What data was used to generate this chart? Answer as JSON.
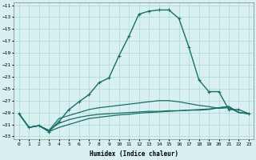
{
  "xlabel": "Humidex (Indice chaleur)",
  "background_color": "#d8f0f0",
  "grid_color": "#a8d8d8",
  "line_color": "#1a6e6a",
  "xlim": [
    -0.5,
    23.5
  ],
  "ylim": [
    -33.5,
    -10.5
  ],
  "yticks": [
    -11,
    -13,
    -15,
    -17,
    -19,
    -21,
    -23,
    -25,
    -27,
    -29,
    -31,
    -33
  ],
  "xticks": [
    0,
    1,
    2,
    3,
    4,
    5,
    6,
    7,
    8,
    9,
    10,
    11,
    12,
    13,
    14,
    15,
    16,
    17,
    18,
    19,
    20,
    21,
    22,
    23
  ],
  "series": [
    {
      "x": [
        0,
        1,
        2,
        3,
        4,
        5,
        6,
        7,
        8,
        9,
        10,
        11,
        12,
        13,
        14,
        15,
        16,
        17,
        18,
        19,
        20,
        21,
        22,
        23
      ],
      "y": [
        -29.2,
        -31.5,
        -31.2,
        -32.0,
        -30.8,
        -30.2,
        -29.8,
        -29.5,
        -29.3,
        -29.2,
        -29.1,
        -29.0,
        -28.9,
        -28.8,
        -28.8,
        -28.7,
        -28.7,
        -28.6,
        -28.6,
        -28.5,
        -28.2,
        -28.0,
        -29.0,
        -29.2
      ],
      "marker": false,
      "linewidth": 0.9
    },
    {
      "x": [
        0,
        1,
        2,
        3,
        4,
        5,
        6,
        7,
        8,
        9,
        10,
        11,
        12,
        13,
        14,
        15,
        16,
        17,
        18,
        19,
        20,
        21,
        22,
        23
      ],
      "y": [
        -29.2,
        -31.5,
        -31.2,
        -32.2,
        -31.5,
        -31.0,
        -30.5,
        -30.0,
        -29.8,
        -29.6,
        -29.4,
        -29.3,
        -29.1,
        -29.0,
        -28.9,
        -28.8,
        -28.7,
        -28.6,
        -28.5,
        -28.4,
        -28.2,
        -28.0,
        -29.0,
        -29.2
      ],
      "marker": false,
      "linewidth": 0.9
    },
    {
      "x": [
        0,
        1,
        2,
        3,
        4,
        5,
        6,
        7,
        8,
        9,
        10,
        11,
        12,
        13,
        14,
        15,
        16,
        17,
        18,
        19,
        20,
        21,
        22,
        23
      ],
      "y": [
        -29.2,
        -31.5,
        -31.2,
        -32.2,
        -30.5,
        -28.5,
        -27.2,
        -26.0,
        -24.0,
        -23.2,
        -19.5,
        -16.2,
        -12.5,
        -12.0,
        -11.8,
        -11.8,
        -13.2,
        -18.0,
        -23.5,
        -25.5,
        -25.5,
        -28.5,
        -28.5,
        -29.2
      ],
      "marker": true,
      "linewidth": 1.0
    },
    {
      "x": [
        0,
        1,
        2,
        3,
        4,
        5,
        6,
        7,
        8,
        9,
        10,
        11,
        12,
        13,
        14,
        15,
        16,
        17,
        18,
        19,
        20,
        21,
        22,
        23
      ],
      "y": [
        -29.2,
        -31.5,
        -31.2,
        -32.0,
        -30.0,
        -29.5,
        -29.0,
        -28.5,
        -28.2,
        -28.0,
        -27.8,
        -27.6,
        -27.4,
        -27.2,
        -27.0,
        -27.0,
        -27.2,
        -27.5,
        -27.8,
        -28.0,
        -28.3,
        -28.2,
        -29.0,
        -29.2
      ],
      "marker": false,
      "linewidth": 0.9
    }
  ]
}
